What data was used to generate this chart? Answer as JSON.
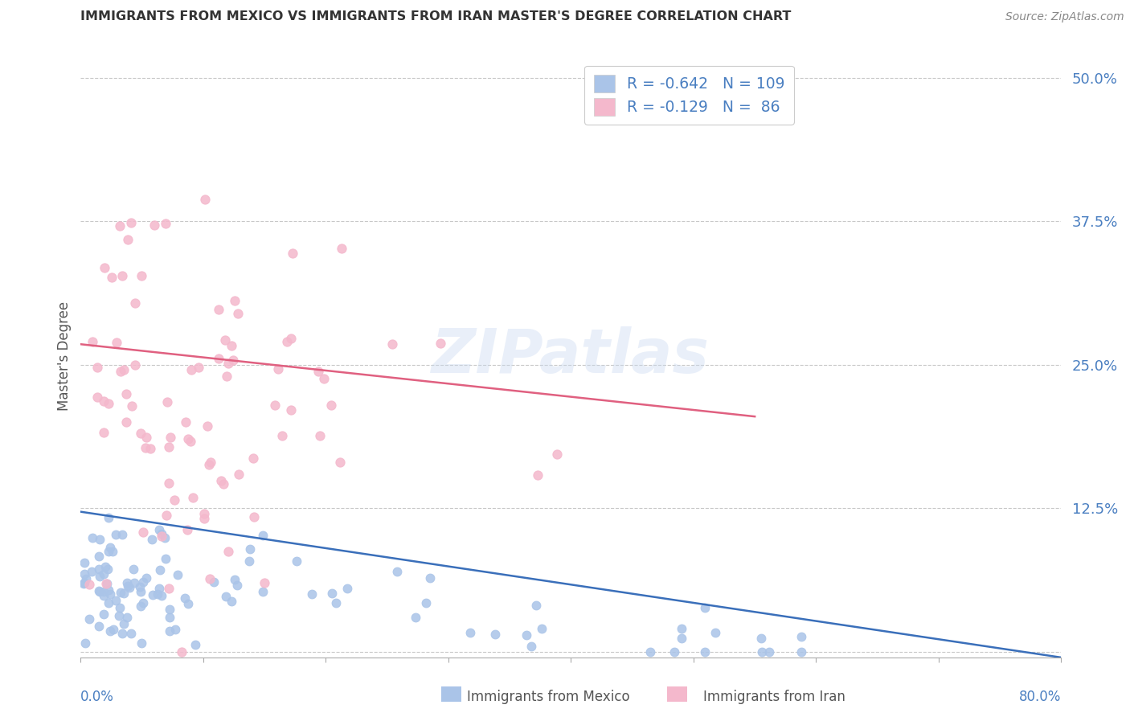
{
  "title": "IMMIGRANTS FROM MEXICO VS IMMIGRANTS FROM IRAN MASTER'S DEGREE CORRELATION CHART",
  "source": "Source: ZipAtlas.com",
  "ylabel": "Master's Degree",
  "ytick_values": [
    0.0,
    0.125,
    0.25,
    0.375,
    0.5
  ],
  "ytick_labels": [
    "",
    "12.5%",
    "25.0%",
    "37.5%",
    "50.0%"
  ],
  "xlim": [
    0.0,
    0.8
  ],
  "ylim": [
    -0.005,
    0.52
  ],
  "legend_blue_r": "-0.642",
  "legend_blue_n": "109",
  "legend_pink_r": "-0.129",
  "legend_pink_n": " 86",
  "legend_label_mexico": "Immigrants from Mexico",
  "legend_label_iran": "Immigrants from Iran",
  "blue_color": "#aac4e8",
  "pink_color": "#f4b8cc",
  "blue_line_color": "#3a6fba",
  "pink_line_color": "#e06080",
  "watermark": "ZIPatlas",
  "background_color": "#ffffff",
  "grid_color": "#c8c8c8",
  "title_color": "#333333",
  "axis_label_color": "#4a7fc1",
  "n_mexico": 109,
  "n_iran": 86,
  "r_mexico": -0.642,
  "r_iran": -0.129,
  "blue_line_x0": 0.0,
  "blue_line_y0": 0.122,
  "blue_line_x1": 0.8,
  "blue_line_y1": -0.005,
  "pink_line_x0": 0.0,
  "pink_line_y0": 0.268,
  "pink_line_x1": 0.55,
  "pink_line_y1": 0.205
}
